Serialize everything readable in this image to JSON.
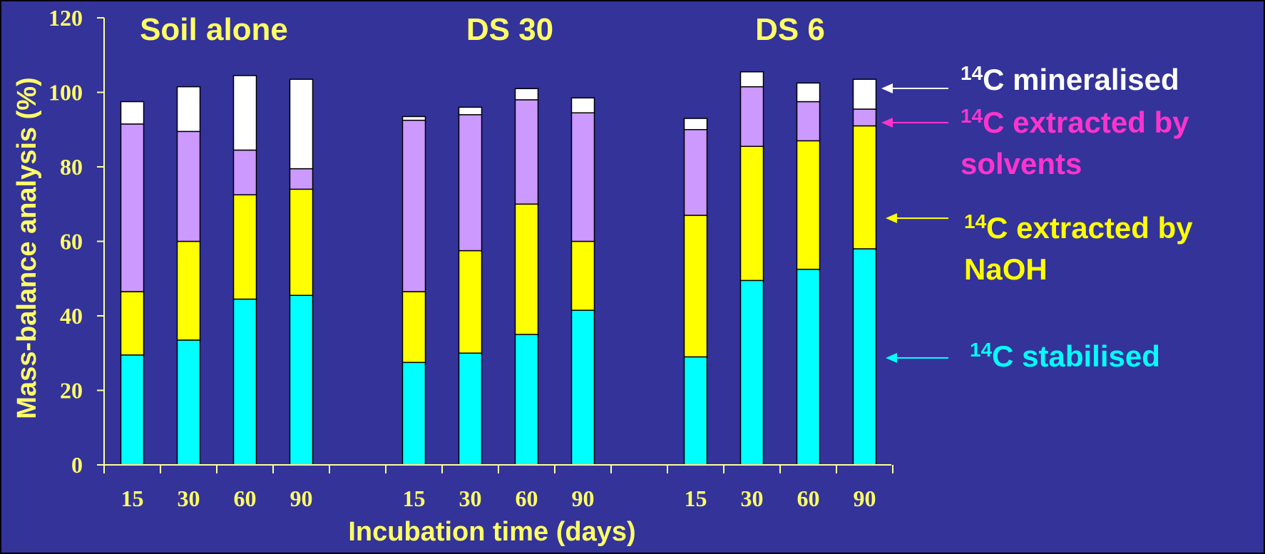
{
  "colors": {
    "background": "#33339a",
    "frame": "#000000",
    "axis": "#ffff99",
    "label": "#ffff66",
    "stabilised": "#00ffff",
    "naoh": "#ffff00",
    "solvents": "#cc99ff",
    "mineralised": "#ffffff",
    "solvents_text": "#ff33cc"
  },
  "chart_data": {
    "type": "bar",
    "stacked": true,
    "xlabel": "Incubation time (days)",
    "ylabel": "Mass-balance analysis (%)",
    "ylim": [
      0,
      120
    ],
    "yticks": [
      0,
      20,
      40,
      60,
      80,
      100,
      120
    ],
    "groups": [
      {
        "name": "Soil alone",
        "categories": [
          "15",
          "30",
          "60",
          "90"
        ]
      },
      {
        "name": "DS 30",
        "categories": [
          "15",
          "30",
          "60",
          "90"
        ]
      },
      {
        "name": "DS 6",
        "categories": [
          "15",
          "30",
          "60",
          "90"
        ]
      }
    ],
    "series": [
      {
        "name": "14C stabilised",
        "color_key": "stabilised",
        "values": [
          29.5,
          33.5,
          44.5,
          45.5,
          27.5,
          30,
          35,
          41.5,
          29,
          49.5,
          52.5,
          58
        ]
      },
      {
        "name": "14C extracted by NaOH",
        "color_key": "naoh",
        "values": [
          17,
          26.5,
          28,
          28.5,
          19,
          27.5,
          35,
          18.5,
          38,
          36,
          34.5,
          33
        ]
      },
      {
        "name": "14C extracted by solvents",
        "color_key": "solvents",
        "values": [
          45,
          29.5,
          12,
          5.5,
          46,
          36.5,
          28,
          34.5,
          23,
          16,
          10.5,
          4.5
        ]
      },
      {
        "name": "14C mineralised",
        "color_key": "mineralised",
        "values": [
          6,
          12,
          20,
          24,
          1,
          2,
          3,
          4,
          3,
          4,
          5,
          8
        ]
      }
    ]
  },
  "legend": [
    {
      "sup": "14",
      "text_lines": [
        "C mineralised"
      ],
      "color_key": "mineralised"
    },
    {
      "sup": "14",
      "text_lines": [
        "C extracted by",
        " solvents"
      ],
      "color_key": "solvents_text"
    },
    {
      "sup": "14",
      "text_lines": [
        "C extracted by",
        "NaOH"
      ],
      "color_key": "naoh"
    },
    {
      "sup": "14",
      "text_lines": [
        "C stabilised"
      ],
      "color_key": "stabilised"
    }
  ]
}
